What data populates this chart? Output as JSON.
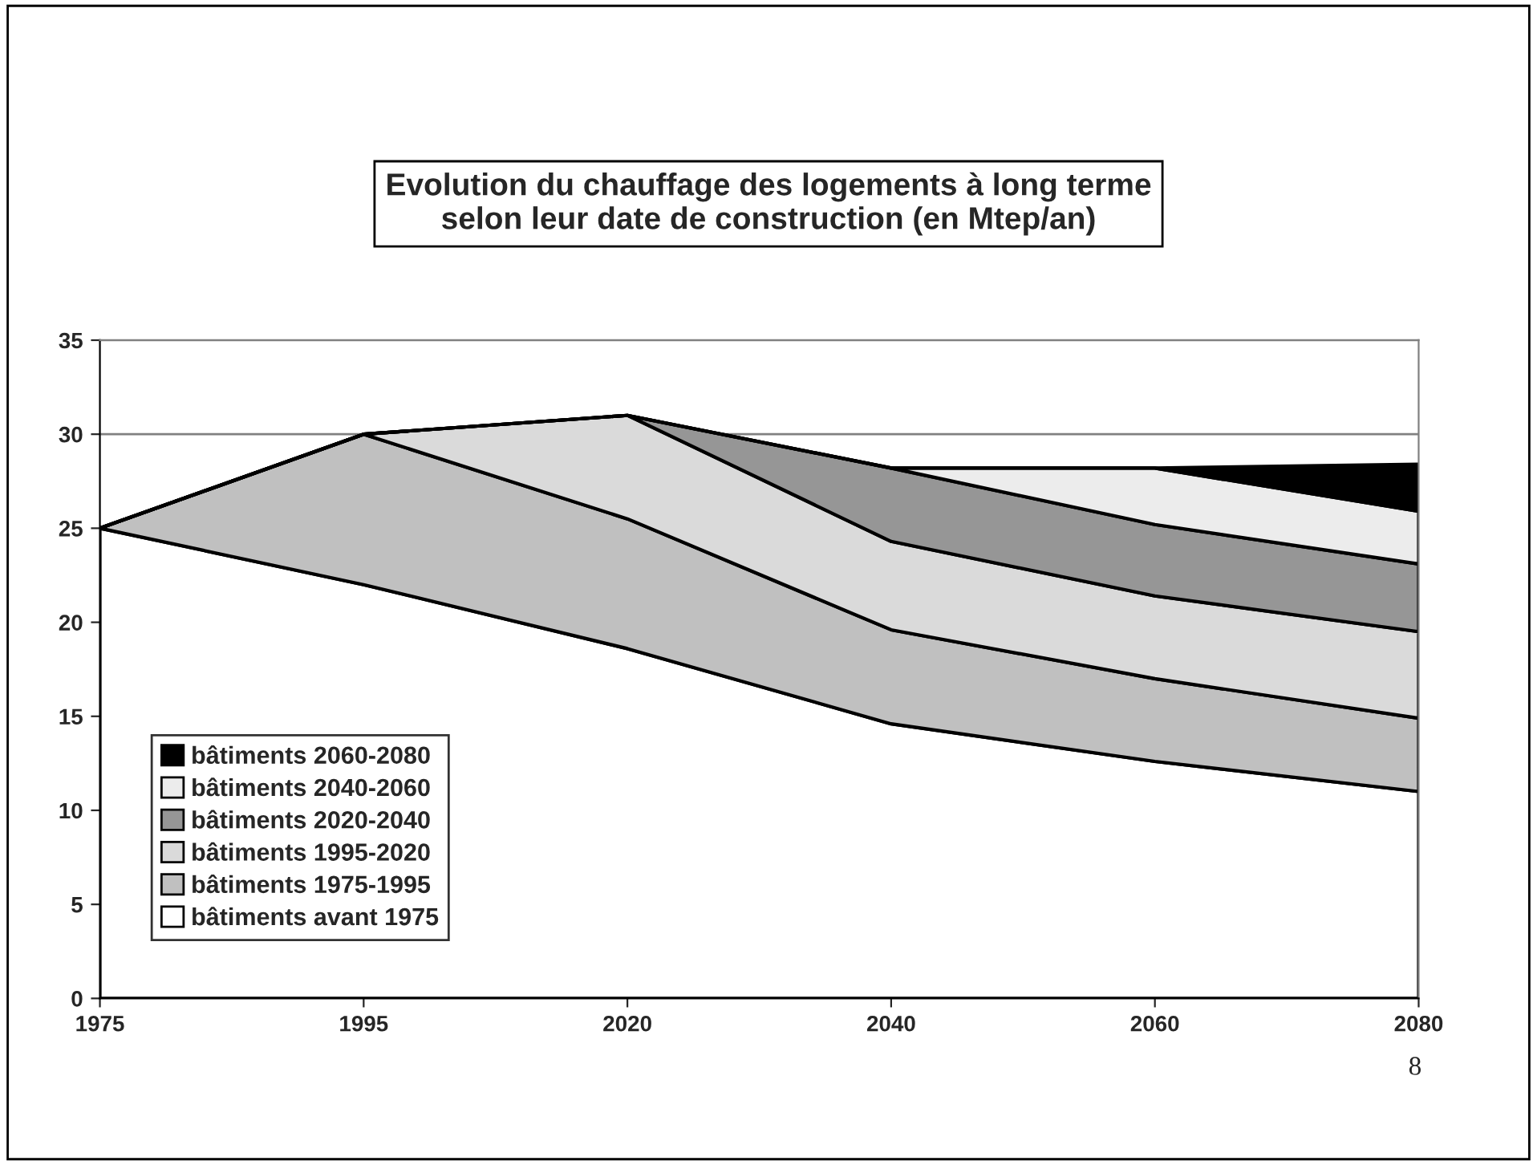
{
  "chart_data": {
    "type": "area",
    "stacked": true,
    "title": "Evolution du chauffage des logements à long terme\nselon leur date de construction (en Mtep/an)",
    "categories": [
      "1975",
      "1995",
      "2020",
      "2040",
      "2060",
      "2080"
    ],
    "series": [
      {
        "name": "bâtiments avant 1975",
        "color": "#ffffff",
        "values": [
          25,
          22,
          18.6,
          14.6,
          12.6,
          11.0
        ]
      },
      {
        "name": "bâtiments 1975-1995",
        "color": "#c0c0c0",
        "values": [
          0,
          8,
          6.9,
          5.0,
          4.4,
          3.9
        ]
      },
      {
        "name": "bâtiments 1995-2020",
        "color": "#dadada",
        "values": [
          0,
          0,
          5.5,
          4.7,
          4.4,
          4.6
        ]
      },
      {
        "name": "bâtiments 2020-2040",
        "color": "#969696",
        "values": [
          0,
          0,
          0,
          3.9,
          3.8,
          3.6
        ]
      },
      {
        "name": "bâtiments 2040-2060",
        "color": "#ececec",
        "values": [
          0,
          0,
          0,
          0,
          3.0,
          2.8
        ]
      },
      {
        "name": "bâtiments 2060-2080",
        "color": "#000000",
        "values": [
          0,
          0,
          0,
          0,
          0,
          2.5
        ]
      }
    ],
    "ylim": [
      0,
      35
    ],
    "yticks": [
      0,
      5,
      10,
      15,
      20,
      25,
      30,
      35
    ],
    "grid": "y",
    "legend": "bottom left",
    "annotations": [
      "8"
    ]
  }
}
